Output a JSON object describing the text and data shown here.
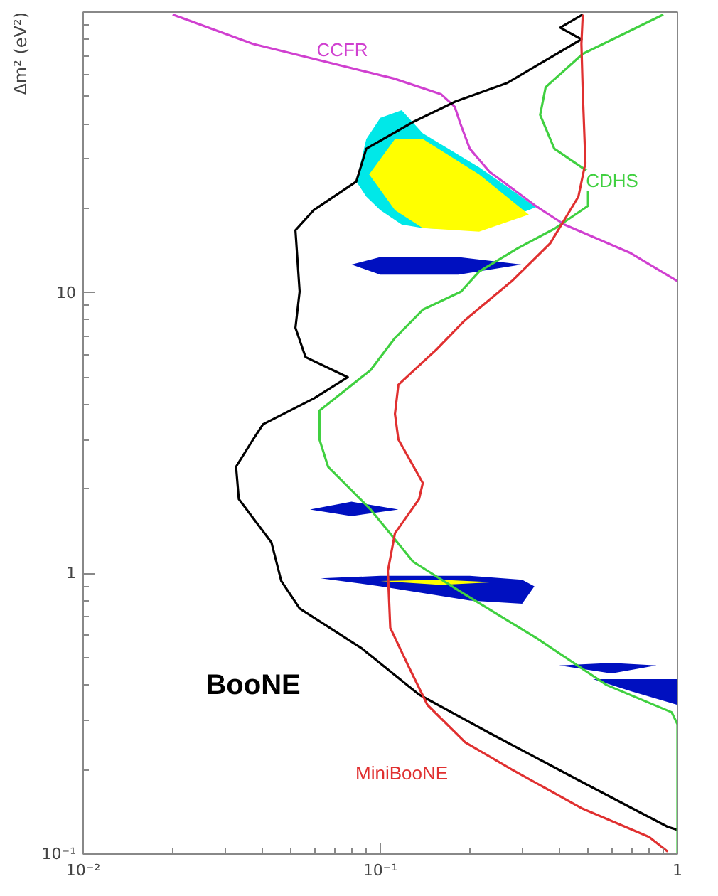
{
  "chart_data": {
    "type": "line",
    "ylabel": "Δm² (eV²)",
    "log": "xy",
    "grid": false,
    "xlim": [
      0.01,
      1
    ],
    "ylim": [
      0.1,
      100
    ],
    "xticks": [
      {
        "value": 0.01,
        "label": "10⁻²"
      },
      {
        "value": 0.1,
        "label": "10⁻¹"
      },
      1
    ],
    "yticks": [
      {
        "value": 0.1,
        "label": "10⁻¹"
      },
      1,
      10
    ],
    "series": [
      {
        "type": "area",
        "color": "#00e8e8",
        "x": [
          0.083,
          0.0897,
          0.1,
          0.118,
          0.139,
          0.215,
          0.334,
          0.215,
          0.139,
          0.118,
          0.1,
          0.0897
        ],
        "values": [
          24.9,
          35.3,
          42,
          44.7,
          37,
          28,
          20.2,
          16.7,
          17,
          17.5,
          19.7,
          22
        ]
      },
      {
        "type": "area",
        "color": "#ffff00",
        "x": [
          0.0917,
          0.112,
          0.139,
          0.215,
          0.316,
          0.215,
          0.139,
          0.112
        ],
        "values": [
          26.4,
          35.3,
          35.3,
          26.4,
          19,
          16.5,
          17,
          19.7
        ]
      },
      {
        "type": "area",
        "color": "#0010c0",
        "x": [
          0.08,
          0.1,
          0.183,
          0.299,
          0.183,
          0.1
        ],
        "values": [
          12.6,
          13.4,
          13.4,
          12.6,
          11.6,
          11.6
        ]
      },
      {
        "type": "area",
        "color": "#0010c0",
        "x": [
          0.058,
          0.08,
          0.115,
          0.08
        ],
        "values": [
          1.69,
          1.8,
          1.69,
          1.6
        ]
      },
      {
        "type": "area",
        "color": "#0010c0",
        "x": [
          0.063,
          0.1,
          0.2,
          0.3,
          0.33,
          0.3,
          0.2,
          0.1
        ],
        "values": [
          0.96,
          0.98,
          0.98,
          0.95,
          0.9,
          0.78,
          0.8,
          0.9
        ]
      },
      {
        "type": "area",
        "color": "#ffff00",
        "x": [
          0.1,
          0.16,
          0.24,
          0.16
        ],
        "values": [
          0.94,
          0.95,
          0.93,
          0.91
        ]
      },
      {
        "type": "area",
        "color": "#0010c0",
        "x": [
          0.4,
          0.6,
          0.85,
          0.6
        ],
        "values": [
          0.47,
          0.48,
          0.47,
          0.44
        ]
      },
      {
        "type": "area",
        "color": "#0010c0",
        "x": [
          0.52,
          0.7,
          1,
          1,
          0.7
        ],
        "values": [
          0.42,
          0.42,
          0.42,
          0.34,
          0.38
        ]
      },
      {
        "name": "CCFR",
        "color": "#d040d0",
        "x": [
          0.02,
          0.0373,
          0.111,
          0.16,
          0.178,
          0.186,
          0.2,
          0.233,
          0.333,
          0.416,
          0.69,
          1
        ],
        "values": [
          98,
          77,
          58,
          51,
          46,
          40,
          32.6,
          27,
          20.4,
          17.5,
          13.9,
          11
        ]
      },
      {
        "name": "BooNE",
        "color": "#000000",
        "x": [
          0.48,
          0.403,
          0.475,
          0.268,
          0.179,
          0.129,
          0.0897,
          0.083,
          0.0597,
          0.0518,
          0.0535,
          0.0518,
          0.056,
          0.0777,
          0.0597,
          0.0403,
          0.0373,
          0.0327,
          0.0334,
          0.043,
          0.0464,
          0.0535,
          0.0867,
          0.135,
          0.233,
          0.48,
          0.927,
          1
        ],
        "values": [
          98,
          88,
          80,
          56,
          48,
          40.6,
          32.6,
          24.9,
          19.7,
          16.7,
          10.1,
          7.5,
          5.9,
          5.0,
          4.2,
          3.4,
          3.0,
          2.4,
          1.84,
          1.29,
          0.94,
          0.75,
          0.54,
          0.37,
          0.27,
          0.18,
          0.125,
          0.122
        ]
      },
      {
        "name": "CDHS",
        "color": "#40d040",
        "x": [
          0.896,
          0.48,
          0.36,
          0.345,
          0.385,
          0.5,
          0.5,
          0.385,
          0.29,
          0.215,
          0.187,
          0.139,
          0.112,
          0.0927,
          0.0624,
          0.0624,
          0.0667,
          0.0927,
          0.129,
          0.193,
          0.334,
          0.578,
          0.956,
          1,
          1
        ],
        "values": [
          98,
          71,
          54,
          43,
          32.6,
          27,
          20.4,
          16.9,
          14.4,
          11.9,
          10.1,
          8.7,
          6.9,
          5.3,
          3.8,
          3.0,
          2.4,
          1.69,
          1.1,
          0.84,
          0.59,
          0.4,
          0.32,
          0.29,
          0.1
        ]
      },
      {
        "name": "MiniBooNE",
        "color": "#e03030",
        "x": [
          0.48,
          0.475,
          0.48,
          0.49,
          0.464,
          0.373,
          0.277,
          0.193,
          0.155,
          0.115,
          0.112,
          0.115,
          0.139,
          0.135,
          0.112,
          0.106,
          0.108,
          0.124,
          0.144,
          0.193,
          0.277,
          0.48,
          0.803,
          0.927
        ],
        "values": [
          98,
          77,
          52,
          29,
          22,
          15,
          11,
          8.0,
          6.3,
          4.7,
          3.7,
          3.0,
          2.1,
          1.84,
          1.39,
          1.02,
          0.64,
          0.47,
          0.34,
          0.25,
          0.2,
          0.145,
          0.115,
          0.102
        ]
      }
    ]
  }
}
